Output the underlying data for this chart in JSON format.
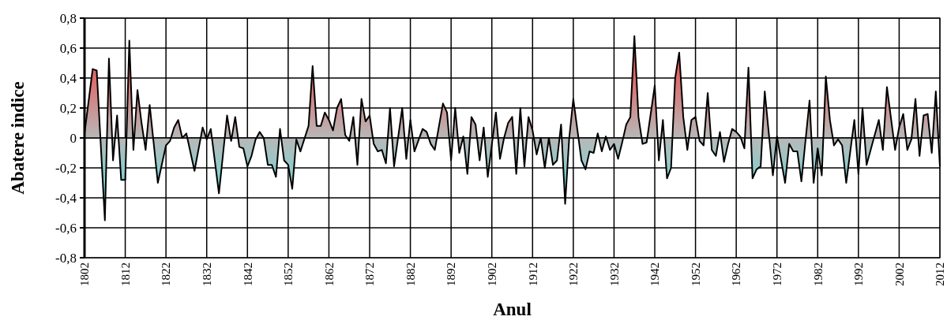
{
  "chart_data": {
    "type": "area",
    "xlabel": "Anul",
    "ylabel": "Abatere indice",
    "grid": true,
    "xlim": [
      1802,
      2012
    ],
    "xticks": [
      1802,
      1812,
      1822,
      1832,
      1842,
      1852,
      1862,
      1872,
      1882,
      1892,
      1902,
      1912,
      1922,
      1932,
      1942,
      1952,
      1962,
      1972,
      1982,
      1992,
      2002,
      2012
    ],
    "ylim": [
      -0.8,
      0.8
    ],
    "yticks": [
      {
        "value": -0.8,
        "label": "-0,8"
      },
      {
        "value": -0.6,
        "label": "-0,6"
      },
      {
        "value": -0.4,
        "label": "-0,4"
      },
      {
        "value": -0.2,
        "label": "-0,2"
      },
      0,
      {
        "value": 0.2,
        "label": "0,2"
      },
      {
        "value": 0.4,
        "label": "0,4"
      },
      {
        "value": 0.6,
        "label": "0,6"
      },
      {
        "value": 0.8,
        "label": "0,8"
      }
    ],
    "series": [
      {
        "color": "#000000",
        "x": [
          1802,
          1804,
          1805,
          1807,
          1808,
          1809,
          1810,
          1811,
          1812,
          1813,
          1814,
          1815,
          1816,
          1817,
          1818,
          1820,
          1822,
          1823,
          1824,
          1825,
          1826,
          1827,
          1829,
          1831,
          1832,
          1833,
          1835,
          1837,
          1838,
          1839,
          1840,
          1841,
          1842,
          1843,
          1844,
          1845,
          1846,
          1847,
          1848,
          1849,
          1850,
          1851,
          1852,
          1853,
          1854,
          1855,
          1857,
          1858,
          1859,
          1860,
          1861,
          1862,
          1863,
          1864,
          1865,
          1866,
          1867,
          1868,
          1869,
          1870,
          1871,
          1872,
          1873,
          1874,
          1875,
          1876,
          1877,
          1878,
          1880,
          1881,
          1882,
          1883,
          1885,
          1886,
          1887,
          1888,
          1890,
          1891,
          1892,
          1893,
          1894,
          1895,
          1896,
          1897,
          1898,
          1899,
          1900,
          1901,
          1903,
          1904,
          1905,
          1906,
          1907,
          1908,
          1909,
          1910,
          1911,
          1912,
          1913,
          1914,
          1915,
          1916,
          1917,
          1918,
          1919,
          1920,
          1921,
          1922,
          1924,
          1925,
          1926,
          1927,
          1928,
          1929,
          1930,
          1931,
          1932,
          1933,
          1934,
          1935,
          1936,
          1937,
          1938,
          1939,
          1940,
          1942,
          1943,
          1944,
          1945,
          1946,
          1947,
          1948,
          1949,
          1950,
          1951,
          1952,
          1953,
          1954,
          1955,
          1956,
          1957,
          1958,
          1959,
          1960,
          1961,
          1962,
          1963,
          1964,
          1965,
          1966,
          1967,
          1968,
          1969,
          1971,
          1972,
          1974,
          1975,
          1976,
          1977,
          1978,
          1980,
          1981,
          1982,
          1983,
          1984,
          1985,
          1986,
          1987,
          1988,
          1989,
          1991,
          1992,
          1993,
          1994,
          1997,
          1998,
          1999,
          2001,
          2002,
          2003,
          2004,
          2005,
          2006,
          2007,
          2008,
          2009,
          2010,
          2011,
          2012
        ],
        "values": [
          0.03,
          0.46,
          0.45,
          -0.55,
          0.53,
          -0.15,
          0.15,
          -0.28,
          -0.28,
          0.65,
          -0.08,
          0.32,
          0.1,
          -0.08,
          0.22,
          -0.3,
          -0.05,
          -0.02,
          0.07,
          0.12,
          0.0,
          0.03,
          -0.22,
          0.07,
          -0.01,
          0.06,
          -0.37,
          0.15,
          -0.02,
          0.14,
          -0.06,
          -0.07,
          -0.19,
          -0.12,
          -0.01,
          0.04,
          0.0,
          -0.18,
          -0.18,
          -0.26,
          0.06,
          -0.15,
          -0.18,
          -0.34,
          -0.01,
          -0.09,
          0.08,
          0.48,
          0.08,
          0.08,
          0.17,
          0.12,
          0.05,
          0.2,
          0.26,
          0.02,
          -0.02,
          0.14,
          -0.18,
          0.26,
          0.11,
          0.15,
          -0.04,
          -0.09,
          -0.08,
          -0.17,
          0.2,
          -0.19,
          0.2,
          -0.14,
          0.12,
          -0.09,
          0.06,
          0.04,
          -0.04,
          -0.08,
          0.23,
          0.17,
          -0.15,
          0.2,
          -0.1,
          0.01,
          -0.24,
          0.14,
          0.09,
          -0.15,
          0.07,
          -0.26,
          0.17,
          -0.14,
          0.0,
          0.1,
          0.14,
          -0.24,
          0.2,
          -0.19,
          0.14,
          0.05,
          -0.11,
          0.0,
          -0.2,
          0.0,
          -0.18,
          -0.15,
          0.09,
          -0.44,
          0.0,
          0.26,
          -0.15,
          -0.21,
          -0.09,
          -0.1,
          0.03,
          -0.09,
          0.01,
          -0.08,
          -0.04,
          -0.14,
          -0.03,
          0.09,
          0.14,
          0.68,
          0.14,
          -0.04,
          -0.03,
          0.35,
          -0.15,
          0.12,
          -0.27,
          -0.2,
          0.4,
          0.57,
          0.14,
          -0.08,
          0.12,
          0.14,
          -0.02,
          -0.05,
          0.3,
          -0.08,
          -0.12,
          0.04,
          -0.16,
          -0.04,
          0.06,
          0.04,
          0.01,
          -0.07,
          0.47,
          -0.27,
          -0.21,
          -0.19,
          0.31,
          -0.25,
          0.01,
          -0.3,
          -0.04,
          -0.09,
          -0.09,
          -0.29,
          0.25,
          -0.3,
          -0.07,
          -0.25,
          0.41,
          0.12,
          -0.05,
          -0.01,
          -0.05,
          -0.3,
          0.12,
          -0.24,
          0.2,
          -0.18,
          0.12,
          -0.08,
          0.34,
          -0.08,
          0.07,
          0.16,
          -0.08,
          -0.01,
          0.26,
          -0.12,
          0.15,
          0.16,
          -0.1,
          0.31,
          -0.19
        ]
      }
    ]
  }
}
